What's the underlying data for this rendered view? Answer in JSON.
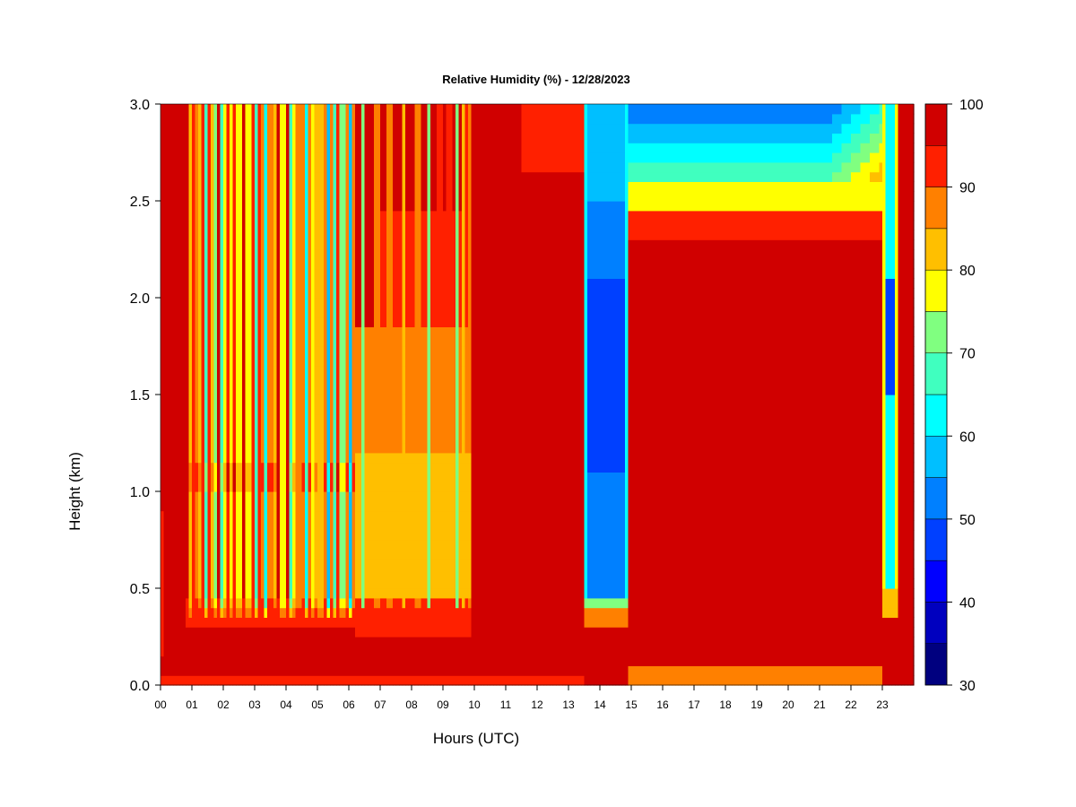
{
  "chart_data": {
    "type": "heatmap",
    "title": "Relative Humidity (%) - 12/28/2023",
    "xlabel": "Hours (UTC)",
    "ylabel": "Height (km)",
    "xlim": [
      0,
      24
    ],
    "ylim": [
      0.0,
      3.0
    ],
    "x_ticks": [
      "00",
      "01",
      "02",
      "03",
      "04",
      "05",
      "06",
      "07",
      "08",
      "09",
      "10",
      "11",
      "12",
      "13",
      "14",
      "15",
      "16",
      "17",
      "18",
      "19",
      "20",
      "21",
      "22",
      "23"
    ],
    "y_ticks": [
      "0.0",
      "0.5",
      "1.0",
      "1.5",
      "2.0",
      "2.5",
      "3.0"
    ],
    "colorbar": {
      "range": [
        30,
        100
      ],
      "tick_labels": [
        "30",
        "40",
        "50",
        "60",
        "70",
        "80",
        "90",
        "100"
      ],
      "levels": [
        30,
        35,
        40,
        45,
        50,
        55,
        60,
        65,
        70,
        75,
        80,
        85,
        90,
        95,
        100
      ],
      "colors": [
        "#00007f",
        "#0000bf",
        "#0000ff",
        "#0040ff",
        "#0080ff",
        "#00bfff",
        "#00ffff",
        "#40ffbf",
        "#80ff80",
        "#ffff00",
        "#ffbf00",
        "#ff8000",
        "#ff2000",
        "#d00000",
        "#7f0000"
      ]
    },
    "regimes": [
      {
        "hours": [
          0.0,
          0.85
        ],
        "description": "saturated, near 100% at all heights"
      },
      {
        "hours": [
          0.85,
          6.2
        ],
        "description": "alternating narrow bands of 60-90% above 0.4 km with saturated streaks"
      },
      {
        "hours": [
          6.2,
          9.9
        ],
        "description": "80-95% between 0.3 and 1.8 km, saturated above"
      },
      {
        "hours": [
          9.9,
          13.5
        ],
        "description": "saturated, slightly below 100% near 3 km at 12-13 UTC"
      },
      {
        "hours": [
          13.5,
          14.95
        ],
        "description": "dry layer 40-60% from 0.45 to 3 km"
      },
      {
        "hours": [
          14.95,
          23.0
        ],
        "description": "saturated below 2.3 km, 45-75% above 2.4 km"
      },
      {
        "hours": [
          23.0,
          23.5
        ],
        "description": "narrow dry streak 40-70% above 0.4 km"
      },
      {
        "hours": [
          23.5,
          24.0
        ],
        "description": "saturated"
      }
    ]
  }
}
